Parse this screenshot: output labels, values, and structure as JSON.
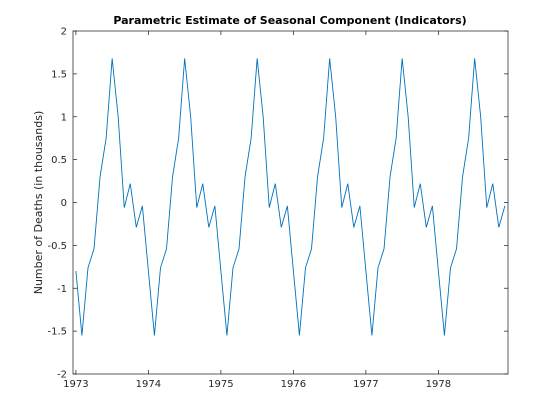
{
  "chart_data": {
    "type": "line",
    "title": "Parametric Estimate of Seasonal Component (Indicators)",
    "xlabel": "",
    "ylabel": "Number of Deaths (in thousands)",
    "xlim": [
      1972.96,
      1978.96
    ],
    "ylim": [
      -2,
      2
    ],
    "x_ticks": [
      "1973",
      "1974",
      "1975",
      "1976",
      "1977",
      "1978"
    ],
    "y_ticks": [
      "-2",
      "-1.5",
      "-1",
      "-0.5",
      "0",
      "0.5",
      "1",
      "1.5",
      "2"
    ],
    "grid": false,
    "color": "#0072BD",
    "start": 1973.0,
    "period_months": 12,
    "cycles": 6,
    "seasonal_values": [
      -0.8,
      -1.55,
      -0.76,
      -0.54,
      0.3,
      0.75,
      1.68,
      1.0,
      -0.06,
      0.22,
      -0.29,
      -0.04
    ],
    "series": [
      {
        "x": [
          1973.0,
          1973.083,
          1973.167,
          1973.25,
          1973.333,
          1973.417,
          1973.5,
          1973.583,
          1973.667,
          1973.75,
          1973.833,
          1973.917,
          1974.0,
          1974.083,
          1974.167,
          1974.25,
          1974.333,
          1974.417,
          1974.5,
          1974.583,
          1974.667,
          1974.75,
          1974.833,
          1974.917,
          1975.0,
          1975.083,
          1975.167,
          1975.25,
          1975.333,
          1975.417,
          1975.5,
          1975.583,
          1975.667,
          1975.75,
          1975.833,
          1975.917,
          1976.0,
          1976.083,
          1976.167,
          1976.25,
          1976.333,
          1976.417,
          1976.5,
          1976.583,
          1976.667,
          1976.75,
          1976.833,
          1976.917,
          1977.0,
          1977.083,
          1977.167,
          1977.25,
          1977.333,
          1977.417,
          1977.5,
          1977.583,
          1977.667,
          1977.75,
          1977.833,
          1977.917,
          1978.0,
          1978.083,
          1978.167,
          1978.25,
          1978.333,
          1978.417,
          1978.5,
          1978.583,
          1978.667,
          1978.75,
          1978.833,
          1978.917
        ],
        "y": [
          -0.8,
          -1.55,
          -0.76,
          -0.54,
          0.3,
          0.75,
          1.68,
          1.0,
          -0.06,
          0.22,
          -0.29,
          -0.04,
          -0.8,
          -1.55,
          -0.76,
          -0.54,
          0.3,
          0.75,
          1.68,
          1.0,
          -0.06,
          0.22,
          -0.29,
          -0.04,
          -0.8,
          -1.55,
          -0.76,
          -0.54,
          0.3,
          0.75,
          1.68,
          1.0,
          -0.06,
          0.22,
          -0.29,
          -0.04,
          -0.8,
          -1.55,
          -0.76,
          -0.54,
          0.3,
          0.75,
          1.68,
          1.0,
          -0.06,
          0.22,
          -0.29,
          -0.04,
          -0.8,
          -1.55,
          -0.76,
          -0.54,
          0.3,
          0.75,
          1.68,
          1.0,
          -0.06,
          0.22,
          -0.29,
          -0.04,
          -0.8,
          -1.55,
          -0.76,
          -0.54,
          0.3,
          0.75,
          1.68,
          1.0,
          -0.06,
          0.22,
          -0.29,
          -0.04
        ]
      }
    ]
  }
}
